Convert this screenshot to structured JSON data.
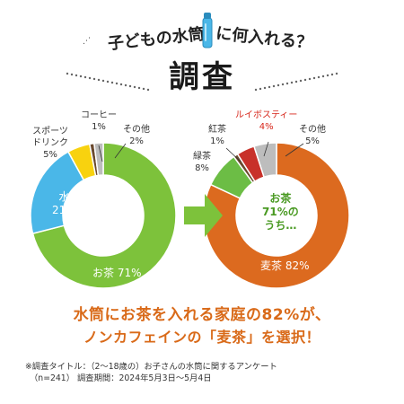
{
  "title": {
    "pre": "子どもの水筒",
    "post": "に何入れる？",
    "main": "調査",
    "bottle_icon": "water-bottle-icon"
  },
  "colors": {
    "green": "#7dc23b",
    "blue": "#4ab7e8",
    "yellow": "#f8d20f",
    "brown": "#6b4a2e",
    "gray": "#bdbdbd",
    "orange": "#dc6a1f",
    "dark_green": "#6cbd45",
    "red": "#c8312a",
    "arrow": "#7dc23b",
    "headline": "#d96a19"
  },
  "chart_data": [
    {
      "type": "pie",
      "donut": true,
      "slices": [
        {
          "label": "お茶",
          "value": 71,
          "color": "#7dc23b"
        },
        {
          "label": "水",
          "value": 21,
          "color": "#4ab7e8"
        },
        {
          "label": "スポーツドリンク",
          "value": 5,
          "color": "#f8d20f"
        },
        {
          "label": "コーヒー",
          "value": 1,
          "color": "#6b4a2e"
        },
        {
          "label": "その他",
          "value": 2,
          "color": "#bdbdbd"
        }
      ],
      "labels": {
        "tea": {
          "name": "お茶",
          "pct": "71%"
        },
        "water": {
          "name": "水",
          "pct": "21%"
        },
        "sports": {
          "name1": "スポーツ",
          "name2": "ドリンク",
          "pct": "5%"
        },
        "coffee": {
          "name": "コーヒー",
          "pct": "1%"
        },
        "other": {
          "name": "その他",
          "pct": "2%"
        }
      }
    },
    {
      "type": "pie",
      "donut": true,
      "center_text": [
        "お茶",
        "71%の",
        "うち…"
      ],
      "slices": [
        {
          "label": "麦茶",
          "value": 82,
          "color": "#dc6a1f"
        },
        {
          "label": "緑茶",
          "value": 8,
          "color": "#6cbd45"
        },
        {
          "label": "紅茶",
          "value": 1,
          "color": "#6b4a2e"
        },
        {
          "label": "ルイボスティー",
          "value": 4,
          "color": "#c8312a"
        },
        {
          "label": "その他",
          "value": 5,
          "color": "#bdbdbd"
        }
      ],
      "labels": {
        "mugi": {
          "name": "麦茶",
          "pct": "82%"
        },
        "green": {
          "name": "緑茶",
          "pct": "8%"
        },
        "black": {
          "name": "紅茶",
          "pct": "1%"
        },
        "rooibos": {
          "name": "ルイボスティー",
          "pct": "4%"
        },
        "other": {
          "name": "その他",
          "pct": "5%"
        }
      }
    }
  ],
  "headline": {
    "line1": "水筒にお茶を入れる家庭の82%が、",
    "line2": "ノンカフェインの「麦茶」を選択！"
  },
  "note": {
    "line1": "※調査タイトル：（2～18歳の）お子さんの水筒に関するアンケート",
    "line2": "（n=241） 調査期間：2024年5月3日～5月4日"
  }
}
